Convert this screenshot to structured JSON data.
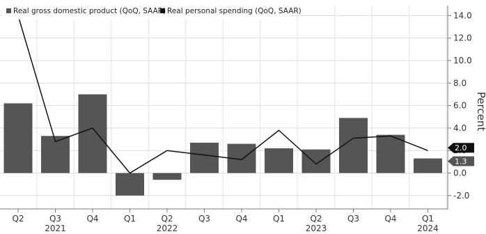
{
  "chart_data": {
    "type": "bar",
    "title": "",
    "categories": [
      "Q2",
      "Q3",
      "Q4",
      "Q1",
      "Q2",
      "Q3",
      "Q4",
      "Q1",
      "Q2",
      "Q3",
      "Q4",
      "Q1"
    ],
    "years": [
      {
        "index": 1,
        "label": "2021"
      },
      {
        "index": 4,
        "label": "2022"
      },
      {
        "index": 8,
        "label": "2023"
      },
      {
        "index": 11,
        "label": "2024"
      }
    ],
    "series": [
      {
        "name": "Real gross domestic product (QoQ, SAAR)",
        "type": "bar",
        "color": "#555555",
        "values": [
          6.2,
          3.3,
          7.0,
          -2.0,
          -0.6,
          2.7,
          2.6,
          2.2,
          2.1,
          4.9,
          3.4,
          1.3
        ]
      },
      {
        "name": "Real personal spending (QoQ, SAAR)",
        "type": "line",
        "color": "#111111",
        "values": [
          14.0,
          2.8,
          4.0,
          0.0,
          2.0,
          1.6,
          1.2,
          3.8,
          0.8,
          3.1,
          3.3,
          2.0
        ]
      }
    ],
    "xlabel": "",
    "ylabel": "Percent",
    "ylim": [
      -3.0,
      15.0
    ],
    "yticks": [
      "14.0",
      "12.0",
      "10.0",
      "8.0",
      "6.0",
      "4.0",
      "2.0",
      "0.0",
      "-2.0"
    ],
    "ytick_values": [
      14,
      12,
      10,
      8,
      6,
      4,
      2,
      0,
      -2
    ],
    "grid": true,
    "legend_position": "top-left",
    "last_value_tags": [
      {
        "text": "2.0",
        "value": 2.0,
        "bg": "#111111",
        "fg": "#ffffff"
      },
      {
        "text": "1.3",
        "value": 1.3,
        "bg": "#555555",
        "fg": "#ffffff"
      }
    ]
  }
}
